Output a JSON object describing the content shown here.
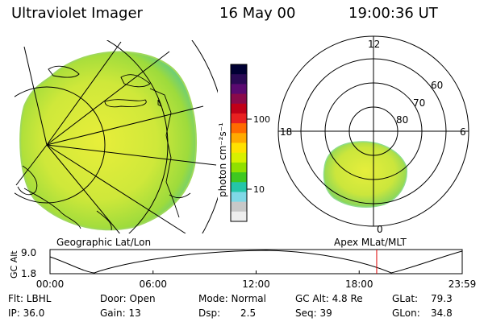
{
  "header": {
    "instrument": "Ultraviolet Imager",
    "date": "16 May 00",
    "time": "19:00:36 UT"
  },
  "colorbar": {
    "unit_label": "photon cm⁻²s⁻¹",
    "tick_100": "100",
    "tick_10": "10",
    "colors": [
      "#000033",
      "#2a0a55",
      "#5a0a70",
      "#8a0a4a",
      "#c00018",
      "#e82020",
      "#ff6a00",
      "#ffaa00",
      "#ffe100",
      "#d8f000",
      "#90e000",
      "#3ec820",
      "#25c6a8",
      "#7fd8e6",
      "#c8c8c8",
      "#eeeeee"
    ]
  },
  "left_map": {
    "caption": "Geographic Lat/Lon"
  },
  "right_map": {
    "caption": "Apex MLat/MLT",
    "mlt_labels": {
      "top": "12",
      "left": "18",
      "right": "6",
      "bottom": "0"
    },
    "lat_labels": [
      "60",
      "70",
      "80"
    ]
  },
  "altitude_plot": {
    "ylabel": "GC Alt",
    "ymax": "9.0",
    "ymin": "1.8",
    "xticks": [
      "00:00",
      "06:00",
      "12:00",
      "18:00",
      "23:59"
    ],
    "current_time_fraction": 0.7925,
    "marker_color": "#e00000"
  },
  "info": {
    "filter": "Flt: LBHL",
    "ip": "IP: 36.0",
    "door": "Door: Open",
    "gain": "Gain: 13",
    "mode": "Mode: Normal",
    "dsp_key": "Dsp:",
    "dsp_val": "2.5",
    "gc_alt": "GC Alt: 4.8 Re",
    "seq": "Seq: 39",
    "glat_key": "GLat:",
    "glat_val": "79.3",
    "glon_key": "GLon:",
    "glon_val": "34.8"
  }
}
